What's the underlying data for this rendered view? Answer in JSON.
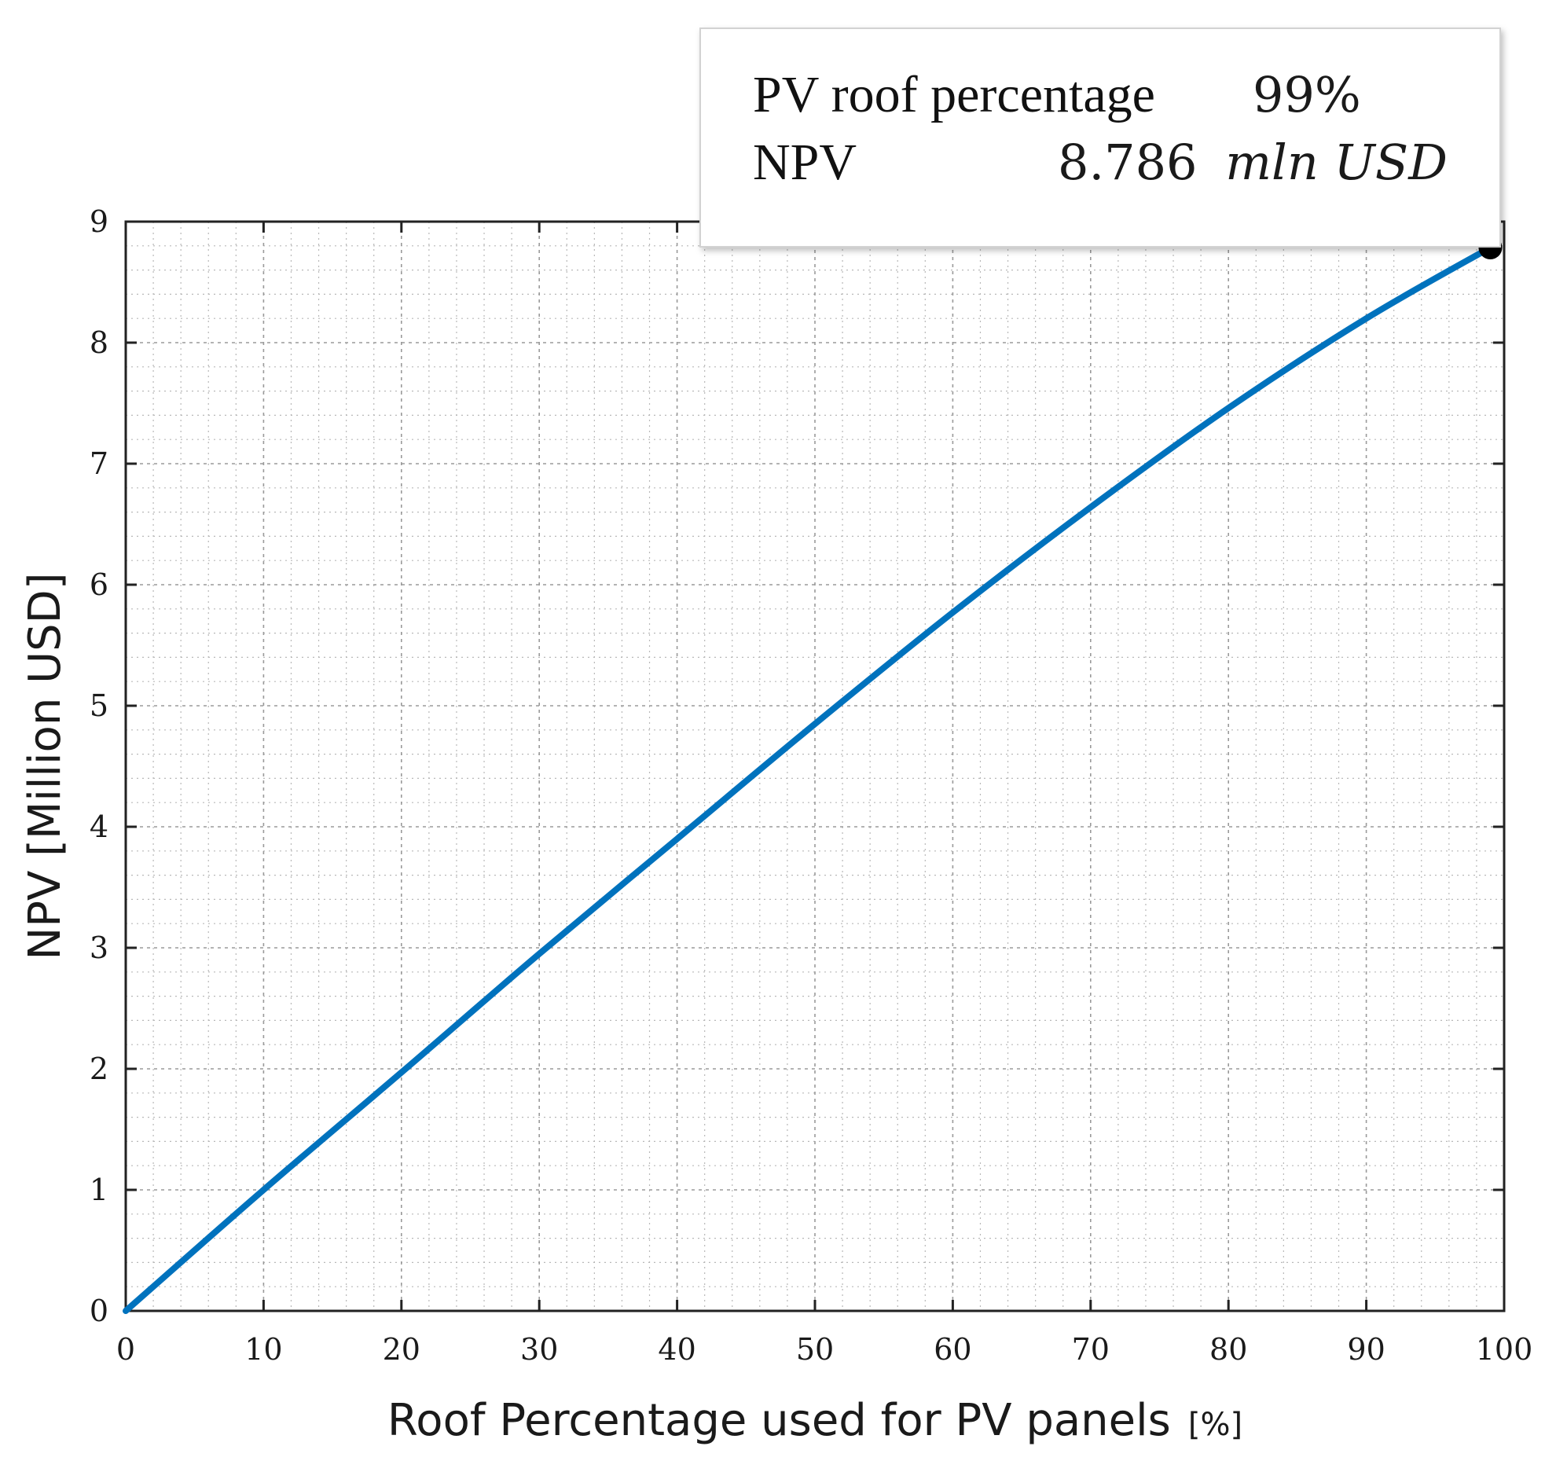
{
  "chart_data": {
    "type": "line",
    "xlabel": "Roof Percentage used  for PV panels",
    "xunit": "[%]",
    "ylabel": "NPV [Million  USD]",
    "xlim": [
      0,
      100
    ],
    "ylim": [
      0,
      9
    ],
    "xticks": [
      "0",
      "10",
      "20",
      "30",
      "40",
      "50",
      "60",
      "70",
      "80",
      "90",
      "100"
    ],
    "yticks": [
      "0",
      "1",
      "2",
      "3",
      "4",
      "5",
      "6",
      "7",
      "8",
      "9"
    ],
    "grid": true,
    "series": [
      {
        "color": "#0072BD",
        "x": [
          0,
          10,
          20,
          30,
          40,
          50,
          60,
          70,
          80,
          90,
          99
        ],
        "y": [
          0,
          1.0,
          1.97,
          2.95,
          3.9,
          4.85,
          5.77,
          6.64,
          7.46,
          8.2,
          8.786
        ]
      }
    ],
    "highlight": {
      "x": 99,
      "y": 8.786
    },
    "tooltip": {
      "row1_key": "PV roof percentage",
      "row1_value": "99%",
      "row2_key": "NPV",
      "row2_number": "8.786",
      "row2_unit": "mln USD",
      "value_color": "#0B5E97"
    }
  }
}
